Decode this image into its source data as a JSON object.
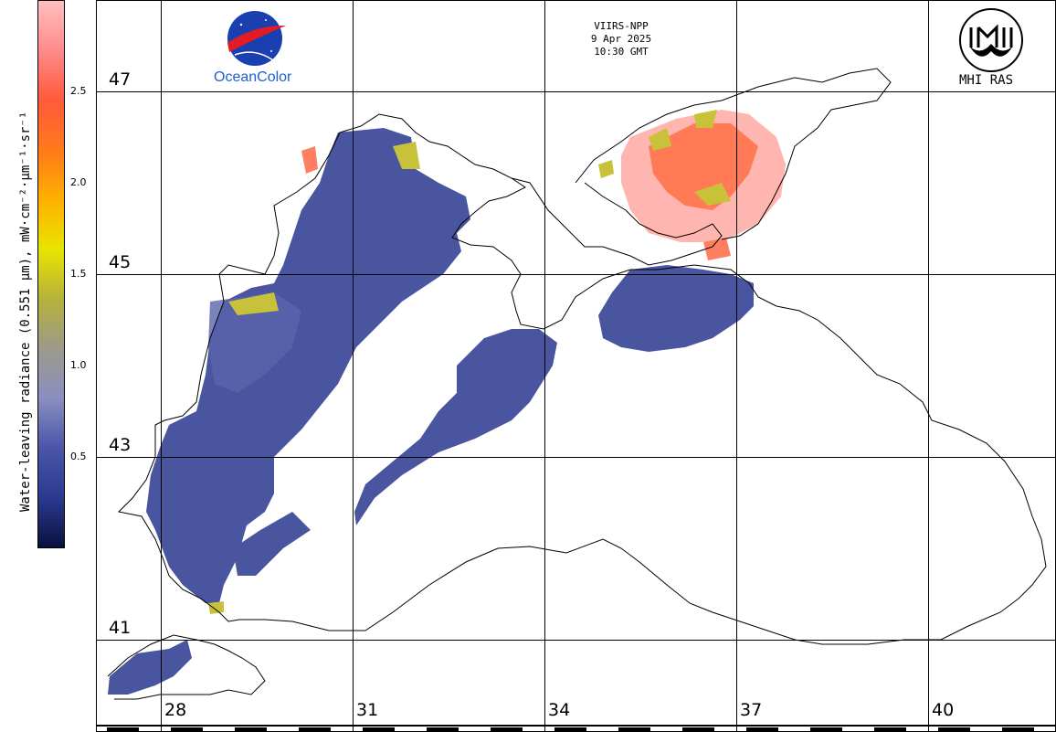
{
  "header": {
    "satellite": "VIIRS-NPP",
    "date": "9 Apr 2025",
    "time": "10:30 GMT"
  },
  "logos": {
    "left_brand": "OceanColor",
    "left_emblem": "NASA",
    "right_brand": "MHI RAS"
  },
  "colorbar": {
    "title": "Water-leaving radiance (0.551 µm), mW·cm⁻²·µm⁻¹·sr⁻¹",
    "ticks": [
      "2.5",
      "2.0",
      "1.5",
      "1.0",
      "0.5"
    ],
    "colors": [
      "#0b1040",
      "#2b3a8f",
      "#4a55a8",
      "#8a8fc0",
      "#9c9a8a",
      "#b6b23a",
      "#e8e400",
      "#ffb000",
      "#ff7a1a",
      "#ff5a3a",
      "#ff8a8a",
      "#ffc0c0"
    ]
  },
  "grid": {
    "latitudes": [
      "47",
      "45",
      "43",
      "41"
    ],
    "longitudes": [
      "28",
      "31",
      "34",
      "37",
      "40"
    ]
  },
  "palette": {
    "water_low": "#4a55a0",
    "water_mid": "#5a64ad",
    "turbid_yellow": "#c8c23a",
    "turbid_orange": "#ff7a3a",
    "turbid_pink": "#ff9a9a",
    "coast": "#000000",
    "land": "#ffffff"
  }
}
